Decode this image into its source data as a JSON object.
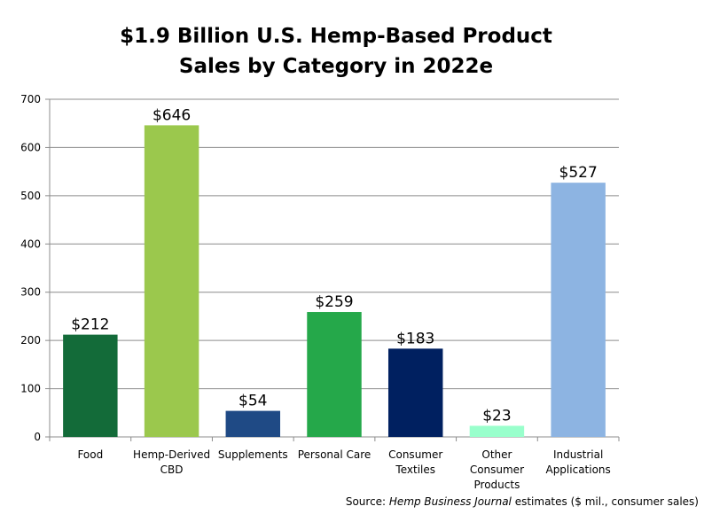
{
  "chart_data": {
    "type": "bar",
    "title": "$1.9 Billion U.S. Hemp-Based Product",
    "subtitle": "Sales by Category in 2022e",
    "xlabel": "",
    "ylabel": "",
    "ylim": [
      0,
      700
    ],
    "yticks": [
      0,
      100,
      200,
      300,
      400,
      500,
      600,
      700
    ],
    "grid": true,
    "legend": "none",
    "categories": [
      [
        "Food"
      ],
      [
        "Hemp-Derived",
        "CBD"
      ],
      [
        "Supplements"
      ],
      [
        "Personal Care"
      ],
      [
        "Consumer",
        "Textiles"
      ],
      [
        "Other",
        "Consumer",
        "Products"
      ],
      [
        "Industrial",
        "Applications"
      ]
    ],
    "values": [
      212,
      646,
      54,
      259,
      183,
      23,
      527
    ],
    "data_labels": [
      "$212",
      "$646",
      "$54",
      "$259",
      "$183",
      "$23",
      "$527"
    ],
    "colors": [
      "#136B39",
      "#9BC84D",
      "#1F4A85",
      "#25A84A",
      "#002060",
      "#99FFCC",
      "#8DB4E2"
    ]
  },
  "source": {
    "prefix": "Source: ",
    "publication": "Hemp Business Journal",
    "suffix": " estimates ($ mil., consumer sales)"
  }
}
